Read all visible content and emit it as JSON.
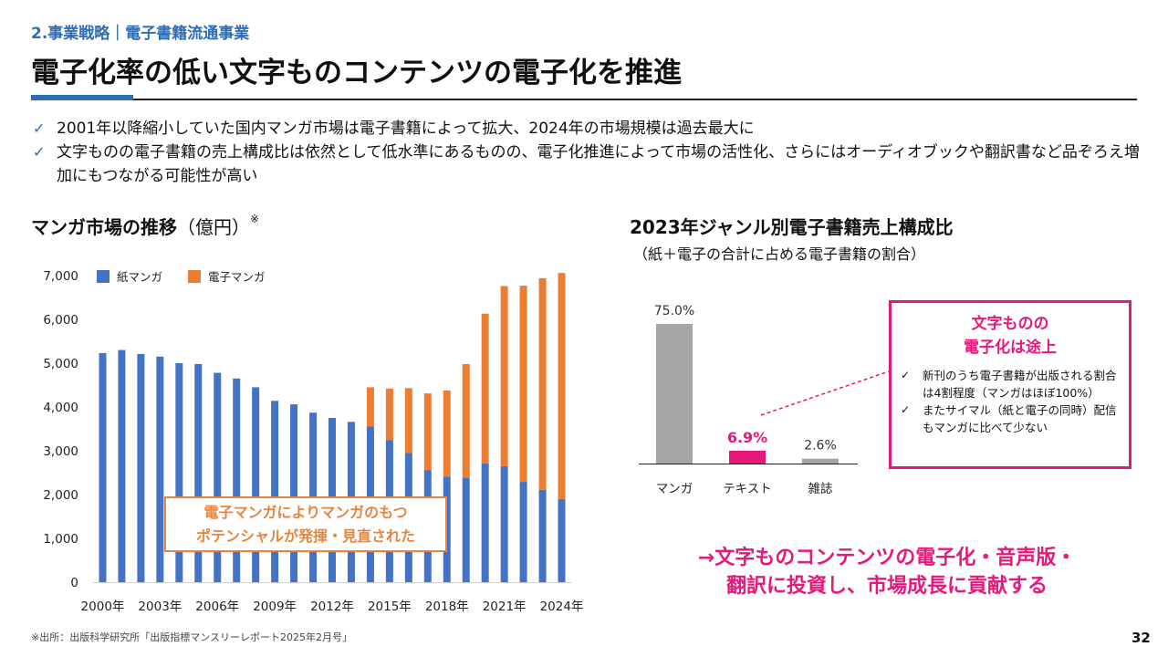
{
  "header": {
    "section_label": "2.事業戦略｜電子書籍流通事業",
    "title": "電子化率の低い文字ものコンテンツの電子化を推進"
  },
  "bullets": [
    "2001年以降縮小していた国内マンガ市場は電子書籍によって拡大、2024年の市場規模は過去最大に",
    "文字ものの電子書籍の売上構成比は依然として低水準にあるものの、電子化推進によって市場の活性化、さらにはオーディオブックや翻訳書など品ぞろえ増加にもつながる可能性が高い"
  ],
  "left_chart_title": {
    "main": "マンガ市場の推移",
    "unit": "（億円）",
    "note": "※"
  },
  "right_chart_title": {
    "main": "2023年ジャンル別電子書籍売上構成比",
    "subtitle": "（紙＋電子の合計に占める電子書籍の割合）"
  },
  "orange_callout": {
    "line1": "電子マンガによりマンガのもつ",
    "line2": "ポテンシャルが発揮・見直された"
  },
  "pink_box": {
    "title_line1": "文字ものの",
    "title_line2": "電子化は途上",
    "items": [
      "新刊のうち電子書籍が出版される割合は4割程度（マンガはほぼ100%）",
      "またサイマル（紙と電子の同時）配信もマンガに比べて少ない"
    ]
  },
  "conclusion": {
    "line1": "→文字ものコンテンツの電子化・音声版・",
    "line2": "翻訳に投資し、市場成長に貢献する"
  },
  "footnote": "※出所：出版科学研究所「出版指標マンスリーレポート2025年2月号」",
  "page_number": "32",
  "colors": {
    "accent_blue": "#2e6db4",
    "paper_bar": "#4472c4",
    "digital_bar": "#ed7d31",
    "pink": "#e6197b",
    "gray_bar": "#a6a6a6"
  },
  "chart_data": [
    {
      "type": "bar",
      "stacked": true,
      "title": "マンガ市場の推移（億円）※",
      "categories": [
        "2000年",
        "2001年",
        "2002年",
        "2003年",
        "2004年",
        "2005年",
        "2006年",
        "2007年",
        "2008年",
        "2009年",
        "2010年",
        "2011年",
        "2012年",
        "2013年",
        "2014年",
        "2015年",
        "2016年",
        "2017年",
        "2018年",
        "2019年",
        "2020年",
        "2021年",
        "2022年",
        "2023年",
        "2024年"
      ],
      "tick_labels": [
        "2000年",
        "2003年",
        "2006年",
        "2009年",
        "2012年",
        "2015年",
        "2018年",
        "2021年",
        "2024年"
      ],
      "series": [
        {
          "name": "紙マンガ",
          "values": [
            5230,
            5300,
            5210,
            5150,
            5000,
            4980,
            4780,
            4650,
            4450,
            4140,
            4060,
            3870,
            3750,
            3660,
            3560,
            3240,
            2950,
            2560,
            2410,
            2390,
            2710,
            2650,
            2290,
            2110,
            1900
          ]
        },
        {
          "name": "電子マンガ",
          "values": [
            0,
            0,
            0,
            0,
            0,
            0,
            0,
            0,
            0,
            0,
            0,
            0,
            0,
            0,
            890,
            1180,
            1480,
            1750,
            1970,
            2590,
            3420,
            4110,
            4480,
            4830,
            5160
          ]
        }
      ],
      "ylim": [
        0,
        7000
      ],
      "yticks": [
        0,
        1000,
        2000,
        3000,
        4000,
        5000,
        6000,
        7000
      ],
      "ytick_labels": [
        "0",
        "1,000",
        "2,000",
        "3,000",
        "4,000",
        "5,000",
        "6,000",
        "7,000"
      ],
      "legend": "top-left"
    },
    {
      "type": "bar",
      "title": "2023年ジャンル別電子書籍売上構成比",
      "categories": [
        "マンガ",
        "テキスト",
        "雑誌"
      ],
      "values": [
        75.0,
        6.9,
        2.6
      ],
      "value_labels": [
        "75.0%",
        "6.9%",
        "2.6%"
      ],
      "highlight_index": 1,
      "ylim": [
        0,
        80
      ]
    }
  ]
}
